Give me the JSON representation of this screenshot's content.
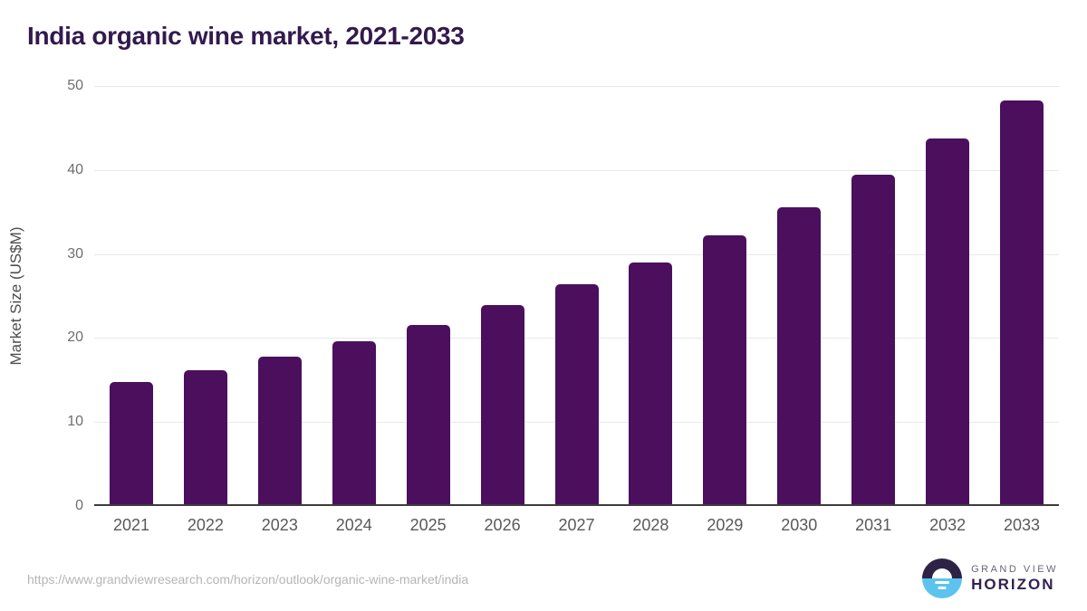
{
  "page": {
    "title": "India organic wine market, 2021-2033"
  },
  "chart_data": {
    "type": "bar",
    "title": "India organic wine market, 2021-2033",
    "categories": [
      "2021",
      "2022",
      "2023",
      "2024",
      "2025",
      "2026",
      "2027",
      "2028",
      "2029",
      "2030",
      "2031",
      "2032",
      "2033"
    ],
    "values": [
      14.6,
      16.0,
      17.6,
      19.4,
      21.3,
      23.7,
      26.2,
      28.8,
      32.0,
      35.4,
      39.2,
      43.5,
      48.1
    ],
    "xlabel": "",
    "ylabel": "Market Size (US$M)",
    "ylim": [
      0,
      50
    ],
    "yticks": [
      0,
      10,
      20,
      30,
      40,
      50
    ],
    "grid": true,
    "legend": false,
    "bar_color": "#4b0f5e"
  },
  "footer": {
    "source_url": "https://www.grandviewresearch.com/horizon/outlook/organic-wine-market/india",
    "logo": {
      "line1": "GRAND VIEW",
      "line2": "HORIZON"
    }
  },
  "colors": {
    "bar": "#4b0f5e",
    "title_text": "#321a4e",
    "tick_text": "#6e6e6e",
    "axis_label_text": "#4d4d4d",
    "gridline": "#e8e8e8",
    "axis_line": "#3c3c3c",
    "source_text": "#b5b5b5",
    "logo_dark": "#2e2346",
    "logo_blue": "#5bc3ee"
  }
}
